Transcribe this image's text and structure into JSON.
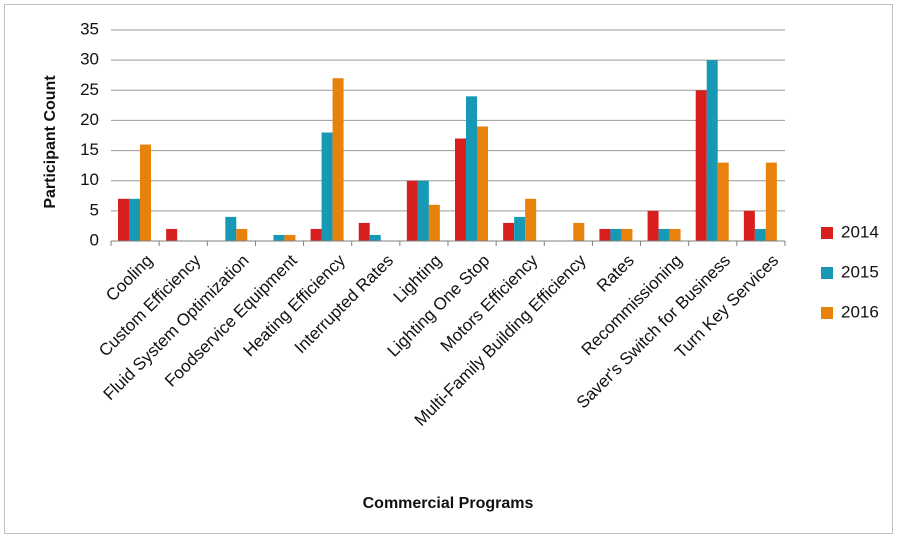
{
  "chart_data": {
    "type": "bar",
    "title": "",
    "xlabel": "Commercial Programs",
    "ylabel": "Participant Count",
    "ylim": [
      0,
      35
    ],
    "yticks": [
      0,
      5,
      10,
      15,
      20,
      25,
      30,
      35
    ],
    "grid": true,
    "legend_position": "right",
    "categories": [
      "Cooling",
      "Custom Efficiency",
      "Fluid System Optimization",
      "Foodservice Equipment",
      "Heating Efficiency",
      "Interrupted Rates",
      "Lighting",
      "Lighting One Stop",
      "Motors Efficiency",
      "Multi-Family Building Efficiency",
      "Rates",
      "Recommissioning",
      "Saver's Switch for Business",
      "Turn Key Services"
    ],
    "series": [
      {
        "name": "2014",
        "color": "#d7201e",
        "values": [
          7,
          2,
          0,
          0,
          2,
          3,
          10,
          17,
          3,
          0,
          2,
          5,
          25,
          5
        ]
      },
      {
        "name": "2015",
        "color": "#1799b5",
        "values": [
          7,
          0,
          4,
          1,
          18,
          1,
          10,
          24,
          4,
          0,
          2,
          2,
          30,
          2
        ]
      },
      {
        "name": "2016",
        "color": "#e8820c",
        "values": [
          16,
          0,
          2,
          1,
          27,
          0,
          6,
          19,
          7,
          3,
          2,
          2,
          13,
          13
        ]
      }
    ]
  }
}
